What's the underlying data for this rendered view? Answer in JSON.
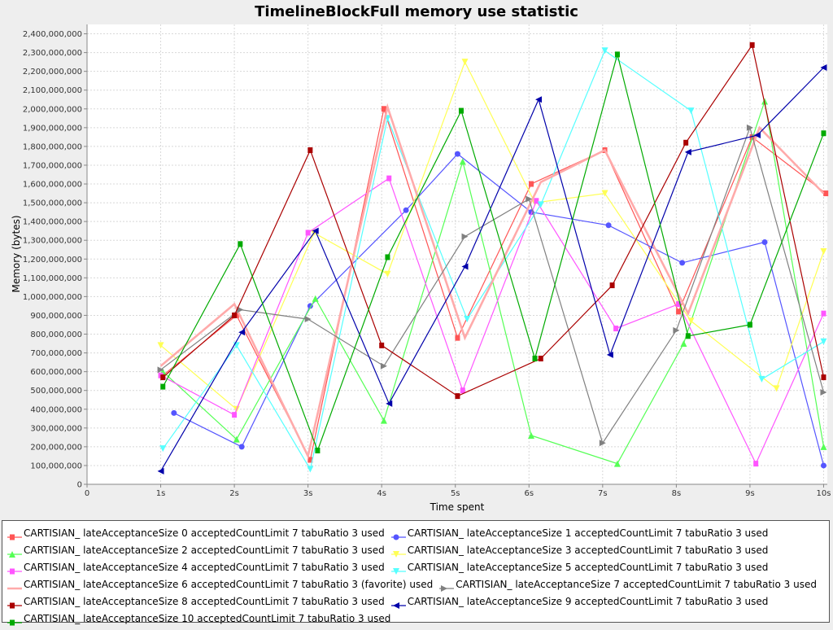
{
  "chart_data": {
    "type": "line",
    "title": "TimelineBlockFull memory use statistic",
    "xlabel": "Time spent",
    "ylabel": "Memory (bytes)",
    "x_tick_labels": [
      "0",
      "1s",
      "2s",
      "3s",
      "4s",
      "5s",
      "6s",
      "7s",
      "8s",
      "9s",
      "10s"
    ],
    "y_tick_labels": [
      "0",
      "100,000,000",
      "200,000,000",
      "300,000,000",
      "400,000,000",
      "500,000,000",
      "600,000,000",
      "700,000,000",
      "800,000,000",
      "900,000,000",
      "1,000,000,000",
      "1,100,000,000",
      "1,200,000,000",
      "1,300,000,000",
      "1,400,000,000",
      "1,500,000,000",
      "1,600,000,000",
      "1,700,000,000",
      "1,800,000,000",
      "1,900,000,000",
      "2,000,000,000",
      "2,100,000,000",
      "2,200,000,000",
      "2,300,000,000",
      "2,400,000,000"
    ],
    "xlim": [
      0,
      10.05
    ],
    "ylim": [
      0,
      2450000000
    ],
    "grid": true,
    "legend_position": "bottom",
    "series": [
      {
        "name": "CARTISIAN_ lateAcceptanceSize 0 acceptedCountLimit 7 tabuRatio 3 used",
        "color": "#ff5555",
        "marker": "square",
        "points": [
          [
            1.03,
            580000000
          ],
          [
            2.03,
            900000000
          ],
          [
            3.03,
            130000000
          ],
          [
            4.03,
            2000000000
          ],
          [
            5.03,
            780000000
          ],
          [
            6.03,
            1600000000
          ],
          [
            7.03,
            1780000000
          ],
          [
            8.03,
            920000000
          ],
          [
            9.03,
            1850000000
          ],
          [
            10.03,
            1550000000
          ]
        ]
      },
      {
        "name": "CARTISIAN_ lateAcceptanceSize 1 acceptedCountLimit 7 tabuRatio 3 used",
        "color": "#5555ff",
        "marker": "circle",
        "points": [
          [
            1.18,
            380000000
          ],
          [
            2.1,
            200000000
          ],
          [
            3.03,
            950000000
          ],
          [
            4.33,
            1460000000
          ],
          [
            5.03,
            1760000000
          ],
          [
            6.03,
            1450000000
          ],
          [
            7.08,
            1380000000
          ],
          [
            8.08,
            1180000000
          ],
          [
            9.2,
            1290000000
          ],
          [
            10.0,
            100000000
          ]
        ]
      },
      {
        "name": "CARTISIAN_ lateAcceptanceSize 2 acceptedCountLimit 7 tabuRatio 3 used",
        "color": "#55ff55",
        "marker": "triangle-up",
        "points": [
          [
            1.03,
            600000000
          ],
          [
            2.03,
            240000000
          ],
          [
            3.1,
            990000000
          ],
          [
            4.03,
            340000000
          ],
          [
            5.1,
            1720000000
          ],
          [
            6.03,
            260000000
          ],
          [
            7.2,
            110000000
          ],
          [
            8.1,
            750000000
          ],
          [
            9.2,
            2040000000
          ],
          [
            10.0,
            200000000
          ]
        ]
      },
      {
        "name": "CARTISIAN_ lateAcceptanceSize 3 acceptedCountLimit 7 tabuRatio 3 used",
        "color": "#ffff55",
        "marker": "triangle-down",
        "points": [
          [
            1.0,
            740000000
          ],
          [
            2.03,
            400000000
          ],
          [
            3.08,
            1340000000
          ],
          [
            4.08,
            1120000000
          ],
          [
            5.13,
            2250000000
          ],
          [
            6.08,
            1500000000
          ],
          [
            7.03,
            1550000000
          ],
          [
            8.2,
            870000000
          ],
          [
            9.36,
            510000000
          ],
          [
            10.0,
            1240000000
          ]
        ]
      },
      {
        "name": "CARTISIAN_ lateAcceptanceSize 4 acceptedCountLimit 7 tabuRatio 3 used",
        "color": "#ff55ff",
        "marker": "square",
        "points": [
          [
            1.0,
            580000000
          ],
          [
            2.0,
            370000000
          ],
          [
            3.0,
            1340000000
          ],
          [
            4.1,
            1630000000
          ],
          [
            5.1,
            500000000
          ],
          [
            6.1,
            1510000000
          ],
          [
            7.18,
            830000000
          ],
          [
            8.03,
            960000000
          ],
          [
            9.08,
            110000000
          ],
          [
            10.0,
            910000000
          ]
        ]
      },
      {
        "name": "CARTISIAN_ lateAcceptanceSize 5 acceptedCountLimit 7 tabuRatio 3 used",
        "color": "#55ffff",
        "marker": "triangle-down",
        "points": [
          [
            1.03,
            190000000
          ],
          [
            2.03,
            740000000
          ],
          [
            3.03,
            80000000
          ],
          [
            4.08,
            1950000000
          ],
          [
            5.16,
            880000000
          ],
          [
            6.16,
            1490000000
          ],
          [
            7.03,
            2310000000
          ],
          [
            8.2,
            1990000000
          ],
          [
            9.16,
            560000000
          ],
          [
            10.0,
            760000000
          ]
        ]
      },
      {
        "name": "CARTISIAN_ lateAcceptanceSize 6 acceptedCountLimit 7 tabuRatio 3 (favorite) used",
        "color": "#ffaaaa",
        "marker": "none",
        "points": [
          [
            1.0,
            630000000
          ],
          [
            2.0,
            960000000
          ],
          [
            3.0,
            150000000
          ],
          [
            4.08,
            2010000000
          ],
          [
            5.13,
            780000000
          ],
          [
            6.16,
            1610000000
          ],
          [
            7.03,
            1780000000
          ],
          [
            8.16,
            910000000
          ],
          [
            9.13,
            1900000000
          ],
          [
            10.0,
            1550000000
          ]
        ]
      },
      {
        "name": "CARTISIAN_ lateAcceptanceSize 7 acceptedCountLimit 7 tabuRatio 3 used",
        "color": "#808080",
        "marker": "triangle-right",
        "points": [
          [
            1.0,
            610000000
          ],
          [
            2.08,
            930000000
          ],
          [
            3.0,
            880000000
          ],
          [
            4.03,
            630000000
          ],
          [
            5.13,
            1320000000
          ],
          [
            6.0,
            1520000000
          ],
          [
            7.0,
            220000000
          ],
          [
            8.0,
            820000000
          ],
          [
            9.0,
            1900000000
          ],
          [
            10.0,
            490000000
          ]
        ]
      },
      {
        "name": "CARTISIAN_ lateAcceptanceSize 8 acceptedCountLimit 7 tabuRatio 3 used",
        "color": "#aa0000",
        "marker": "square",
        "points": [
          [
            1.03,
            570000000
          ],
          [
            2.0,
            900000000
          ],
          [
            3.03,
            1780000000
          ],
          [
            4.0,
            740000000
          ],
          [
            5.03,
            470000000
          ],
          [
            6.16,
            670000000
          ],
          [
            7.13,
            1060000000
          ],
          [
            8.13,
            1820000000
          ],
          [
            9.03,
            2340000000
          ],
          [
            10.0,
            570000000
          ]
        ]
      },
      {
        "name": "CARTISIAN_ lateAcceptanceSize 9 acceptedCountLimit 7 tabuRatio 3 used",
        "color": "#0000aa",
        "marker": "triangle-left",
        "points": [
          [
            1.0,
            70000000
          ],
          [
            2.1,
            810000000
          ],
          [
            3.1,
            1350000000
          ],
          [
            4.1,
            430000000
          ],
          [
            5.13,
            1160000000
          ],
          [
            6.13,
            2050000000
          ],
          [
            7.1,
            690000000
          ],
          [
            8.16,
            1770000000
          ],
          [
            9.1,
            1860000000
          ],
          [
            10.0,
            2220000000
          ]
        ]
      },
      {
        "name": "CARTISIAN_ lateAcceptanceSize 10 acceptedCountLimit 7 tabuRatio 3 used",
        "color": "#00aa00",
        "marker": "square",
        "points": [
          [
            1.03,
            520000000
          ],
          [
            2.08,
            1280000000
          ],
          [
            3.13,
            180000000
          ],
          [
            4.08,
            1210000000
          ],
          [
            5.08,
            1990000000
          ],
          [
            6.08,
            670000000
          ],
          [
            7.2,
            2290000000
          ],
          [
            8.16,
            790000000
          ],
          [
            9.0,
            850000000
          ],
          [
            10.0,
            1870000000
          ]
        ]
      }
    ]
  }
}
